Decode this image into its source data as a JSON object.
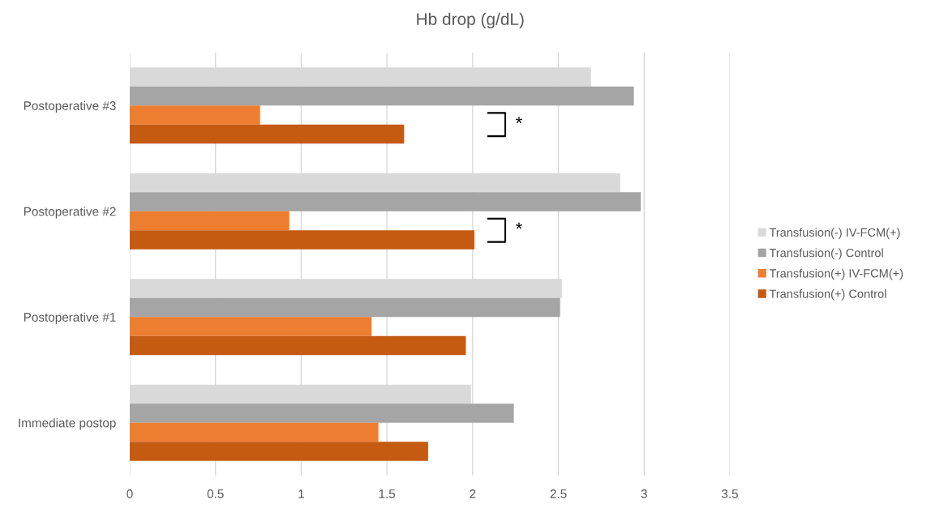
{
  "chart_data": {
    "type": "bar",
    "orientation": "horizontal",
    "title": "Hb drop (g/dL)",
    "categories": [
      "Postoperative #3",
      "Postoperative #2",
      "Postoperative #1",
      "Immediate postop"
    ],
    "series": [
      {
        "name": "Transfusion(-) IV-FCM(+)",
        "color": "#d9d9d9",
        "values": [
          2.69,
          2.86,
          2.52,
          1.99
        ]
      },
      {
        "name": "Transfusion(-) Control",
        "color": "#a5a5a5",
        "values": [
          2.94,
          2.98,
          2.51,
          2.24
        ]
      },
      {
        "name": "Transfusion(+) IV-FCM(+)",
        "color": "#ed7d31",
        "values": [
          0.76,
          0.93,
          1.41,
          1.45
        ]
      },
      {
        "name": "Transfusion(+) Control",
        "color": "#c55a11",
        "values": [
          1.6,
          2.01,
          1.96,
          1.74
        ]
      }
    ],
    "xlim": [
      0,
      3.5
    ],
    "xticks": [
      0,
      0.5,
      1,
      1.5,
      2,
      2.5,
      3,
      3.5
    ],
    "grid": "x",
    "legend": "right",
    "annotations": [
      {
        "text": "*",
        "x": 2.27,
        "y": "Postoperative #3"
      },
      {
        "text": "*",
        "x": 2.27,
        "y": "Postoperative #2"
      }
    ]
  }
}
